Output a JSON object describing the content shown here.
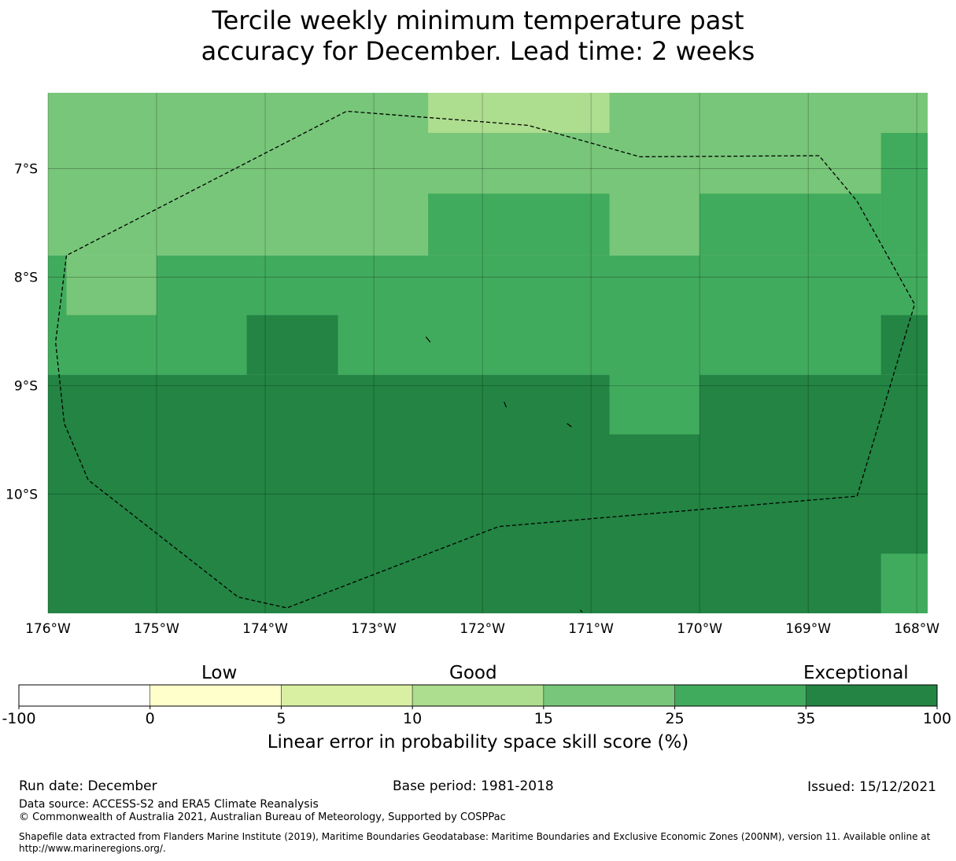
{
  "title": {
    "line1": "Tercile weekly minimum temperature past",
    "line2": "accuracy for December. Lead time: 2 weeks"
  },
  "map": {
    "lon_range": [
      -176,
      -167.9
    ],
    "lat_range": [
      -6.3,
      -11.1
    ],
    "x_ticks": [
      {
        "lon": -176,
        "label": "176°W"
      },
      {
        "lon": -175,
        "label": "175°W"
      },
      {
        "lon": -174,
        "label": "174°W"
      },
      {
        "lon": -173,
        "label": "173°W"
      },
      {
        "lon": -172,
        "label": "172°W"
      },
      {
        "lon": -171,
        "label": "171°W"
      },
      {
        "lon": -170,
        "label": "170°W"
      },
      {
        "lon": -169,
        "label": "169°W"
      },
      {
        "lon": -168,
        "label": "168°W"
      }
    ],
    "y_ticks": [
      {
        "lat": -7,
        "label": "7°S"
      },
      {
        "lat": -8,
        "label": "8°S"
      },
      {
        "lat": -9,
        "label": "9°S"
      },
      {
        "lat": -10,
        "label": "10°S"
      }
    ],
    "grid_cells": [
      {
        "lon0": -176,
        "lon1": -167.9,
        "lat0": -6.3,
        "lat1": -7.8,
        "cls": 25
      },
      {
        "lon0": -172.5,
        "lon1": -170.83,
        "lat0": -6.3,
        "lat1": -6.67,
        "cls": 15
      },
      {
        "lon0": -168.33,
        "lon1": -167.9,
        "lat0": -6.67,
        "lat1": -7.8,
        "cls": 35
      },
      {
        "lon0": -172.5,
        "lon1": -170.83,
        "lat0": -7.23,
        "lat1": -7.8,
        "cls": 35
      },
      {
        "lon0": -170.0,
        "lon1": -168.33,
        "lat0": -7.23,
        "lat1": -7.8,
        "cls": 35
      },
      {
        "lon0": -176,
        "lon1": -167.9,
        "lat0": -7.8,
        "lat1": -8.9,
        "cls": 35
      },
      {
        "lon0": -175.83,
        "lon1": -175.0,
        "lat0": -7.8,
        "lat1": -8.35,
        "cls": 25
      },
      {
        "lon0": -174.17,
        "lon1": -173.33,
        "lat0": -8.35,
        "lat1": -8.9,
        "cls": 100
      },
      {
        "lon0": -168.33,
        "lon1": -167.9,
        "lat0": -8.35,
        "lat1": -8.9,
        "cls": 100
      },
      {
        "lon0": -176,
        "lon1": -167.9,
        "lat0": -8.9,
        "lat1": -11.1,
        "cls": 100
      },
      {
        "lon0": -170.83,
        "lon1": -170.0,
        "lat0": -8.9,
        "lat1": -9.45,
        "cls": 35
      },
      {
        "lon0": -168.33,
        "lon1": -167.9,
        "lat0": -10.55,
        "lat1": -11.1,
        "cls": 35
      }
    ],
    "eez_boundary": [
      [
        -175.83,
        -7.8
      ],
      [
        -175.93,
        -8.6
      ],
      [
        -175.85,
        -9.35
      ],
      [
        -175.63,
        -9.87
      ],
      [
        -174.25,
        -10.95
      ],
      [
        -173.8,
        -11.05
      ],
      [
        -171.85,
        -10.3
      ],
      [
        -168.55,
        -10.02
      ],
      [
        -168.02,
        -8.25
      ],
      [
        -168.55,
        -7.3
      ],
      [
        -168.9,
        -6.88
      ],
      [
        -170.55,
        -6.89
      ],
      [
        -171.58,
        -6.6
      ],
      [
        -173.25,
        -6.47
      ],
      [
        -175.83,
        -7.8
      ]
    ],
    "islands": [
      [
        [
          -172.52,
          -8.55
        ],
        [
          -172.48,
          -8.6
        ]
      ],
      [
        [
          -171.8,
          -9.15
        ],
        [
          -171.78,
          -9.2
        ]
      ],
      [
        [
          -171.22,
          -9.35
        ],
        [
          -171.18,
          -9.38
        ]
      ],
      [
        [
          -171.1,
          -11.07
        ],
        [
          -171.08,
          -11.09
        ]
      ]
    ]
  },
  "colorbar": {
    "category_labels": {
      "low": "Low",
      "good": "Good",
      "exceptional": "Exceptional"
    },
    "bins": [
      {
        "from": -100,
        "to": 0,
        "color": "#ffffff"
      },
      {
        "from": 0,
        "to": 5,
        "color": "#ffffcc"
      },
      {
        "from": 5,
        "to": 10,
        "color": "#d9f0a3"
      },
      {
        "from": 10,
        "to": 15,
        "color": "#addd8e"
      },
      {
        "from": 15,
        "to": 25,
        "color": "#78c679"
      },
      {
        "from": 25,
        "to": 35,
        "color": "#41ab5d"
      },
      {
        "from": 35,
        "to": 100,
        "color": "#238443"
      }
    ],
    "tick_labels": [
      "-100",
      "0",
      "5",
      "10",
      "15",
      "25",
      "35",
      "100"
    ],
    "axis_label": "Linear error in probability space skill score (%)"
  },
  "footer": {
    "run_date": "Run date: December",
    "base_period": "Base period: 1981-2018",
    "issued": "Issued: 15/12/2021",
    "data_source": "Data source: ACCESS-S2 and ERA5 Climate Reanalysis",
    "copyright": "© Commonwealth of Australia 2021, Australian Bureau of Meteorology, Supported by COSPPac",
    "shapefile": "Shapefile data extracted from Flanders Marine Institute (2019), Maritime Boundaries Geodatabase: Maritime Boundaries and Exclusive Economic Zones (200NM), version 11. Available online at http://www.marineregions.org/."
  }
}
